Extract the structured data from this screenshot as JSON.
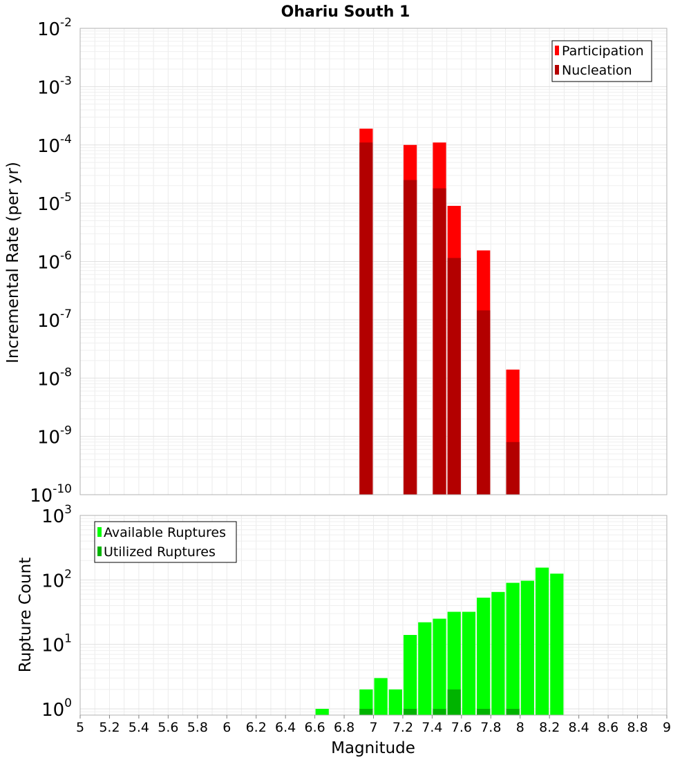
{
  "chart_data": [
    {
      "type": "bar",
      "title": "Ohariu South 1",
      "xlabel": "",
      "ylabel": "Incremental Rate (per yr)",
      "y_scale": "log",
      "ylim": [
        1e-10,
        0.01
      ],
      "xlim": [
        5,
        9
      ],
      "grid": true,
      "legend_position": "top-right",
      "y_tick_labels": [
        {
          "base": "10",
          "exp": "-10",
          "value": 1e-10
        },
        {
          "base": "10",
          "exp": "-9",
          "value": 1e-09
        },
        {
          "base": "10",
          "exp": "-8",
          "value": 1e-08
        },
        {
          "base": "10",
          "exp": "-7",
          "value": 1e-07
        },
        {
          "base": "10",
          "exp": "-6",
          "value": 1e-06
        },
        {
          "base": "10",
          "exp": "-5",
          "value": 1e-05
        },
        {
          "base": "10",
          "exp": "-4",
          "value": 0.0001
        },
        {
          "base": "10",
          "exp": "-3",
          "value": 0.001
        },
        {
          "base": "10",
          "exp": "-2",
          "value": 0.01
        }
      ],
      "series": [
        {
          "name": "Participation",
          "color": "#ff0000",
          "x": [
            6.95,
            7.25,
            7.45,
            7.55,
            7.75,
            7.95
          ],
          "values": [
            0.00019,
            0.0001,
            0.00011,
            9e-06,
            1.55e-06,
            1.4e-08
          ]
        },
        {
          "name": "Nucleation",
          "color": "#b30000",
          "x": [
            6.95,
            7.25,
            7.45,
            7.55,
            7.75,
            7.95
          ],
          "values": [
            0.00011,
            2.5e-05,
            1.8e-05,
            1.15e-06,
            1.45e-07,
            8e-10
          ]
        }
      ]
    },
    {
      "type": "bar",
      "title": "",
      "xlabel": "Magnitude",
      "ylabel": "Rupture Count",
      "y_scale": "log",
      "ylim": [
        0.8,
        1000
      ],
      "xlim": [
        5,
        9
      ],
      "grid": true,
      "legend_position": "top-left",
      "y_tick_labels": [
        {
          "base": "10",
          "exp": "0",
          "value": 1
        },
        {
          "base": "10",
          "exp": "1",
          "value": 10
        },
        {
          "base": "10",
          "exp": "2",
          "value": 100
        },
        {
          "base": "10",
          "exp": "3",
          "value": 1000
        }
      ],
      "x_tick_labels": [
        "5",
        "5.2",
        "5.4",
        "5.6",
        "5.8",
        "6",
        "6.2",
        "6.4",
        "6.6",
        "6.8",
        "7",
        "7.2",
        "7.4",
        "7.6",
        "7.8",
        "8",
        "8.2",
        "8.4",
        "8.6",
        "8.8",
        "9"
      ],
      "series": [
        {
          "name": "Available Ruptures",
          "color": "#00ff00",
          "x": [
            6.65,
            6.95,
            7.05,
            7.15,
            7.25,
            7.35,
            7.45,
            7.55,
            7.65,
            7.75,
            7.85,
            7.95,
            8.05,
            8.15,
            8.25
          ],
          "values": [
            1,
            2,
            3,
            2,
            14,
            22,
            25,
            32,
            32,
            53,
            65,
            90,
            97,
            155,
            125
          ]
        },
        {
          "name": "Utilized Ruptures",
          "color": "#00b300",
          "x": [
            6.95,
            7.25,
            7.45,
            7.55,
            7.75,
            7.95
          ],
          "values": [
            1,
            1,
            1,
            2,
            1,
            1
          ]
        }
      ]
    }
  ]
}
